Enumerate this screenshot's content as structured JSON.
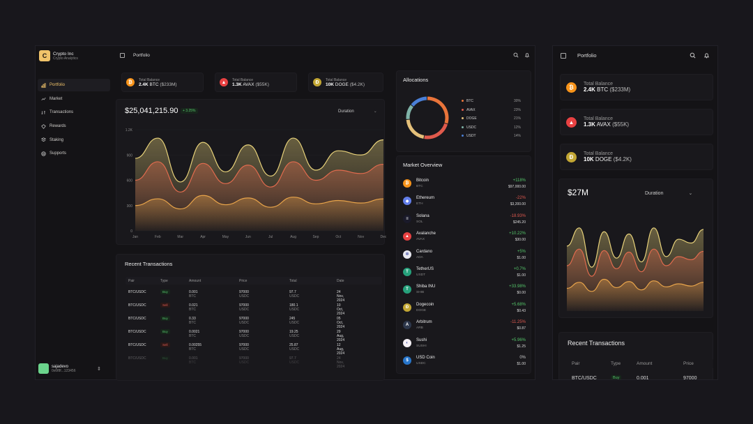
{
  "brand": {
    "name": "Crypto Inc",
    "subtitle": "Crypto Analytics",
    "logo_letter": "C"
  },
  "nav": [
    {
      "label": "Portfolio",
      "icon": "portfolio-icon"
    },
    {
      "label": "Market",
      "icon": "market-icon"
    },
    {
      "label": "Transactions",
      "icon": "transactions-icon"
    },
    {
      "label": "Rewards",
      "icon": "rewards-icon"
    },
    {
      "label": "Staking",
      "icon": "staking-icon"
    },
    {
      "label": "Supports",
      "icon": "supports-icon"
    }
  ],
  "user": {
    "name": "sajadevo",
    "address": "0x6f8f...123456"
  },
  "header": {
    "title": "Portfolio"
  },
  "balances": [
    {
      "label": "Total Balance",
      "amount": "2.4K",
      "sym": "BTC",
      "usd": "($233M)",
      "color": "#f7931a",
      "glyph": "₿"
    },
    {
      "label": "Total Balance",
      "amount": "1.3K",
      "sym": "AVAX",
      "usd": "($55K)",
      "color": "#e84142",
      "glyph": "▲"
    },
    {
      "label": "Total Balance",
      "amount": "10K",
      "sym": "DOGE",
      "usd": "($4.2K)",
      "color": "#c2a633",
      "glyph": "Ð"
    }
  ],
  "chart": {
    "value": "$25,041,215.90",
    "change": "+ 3.25%",
    "duration_label": "Duration",
    "y_ticks": [
      "1.2K",
      "900",
      "600",
      "300",
      "0"
    ],
    "months": [
      "Jan",
      "Feb",
      "Mar",
      "Apr",
      "May",
      "Jun",
      "Jul",
      "Aug",
      "Sep",
      "Oct",
      "Nov",
      "Dec"
    ]
  },
  "chart_data": {
    "type": "area",
    "ylim": [
      0,
      1200
    ],
    "x": [
      "Jan",
      "Feb",
      "Mar",
      "Apr",
      "May",
      "Jun",
      "Jul",
      "Aug",
      "Sep",
      "Oct",
      "Nov",
      "Dec"
    ],
    "series": [
      {
        "values": [
          860,
          1100,
          580,
          1050,
          700,
          1020,
          650,
          1100,
          720,
          950,
          900,
          1080
        ],
        "color": "#e8d27a"
      },
      {
        "values": [
          600,
          820,
          460,
          800,
          560,
          780,
          520,
          820,
          600,
          720,
          680,
          790
        ],
        "color": "#e16b4e"
      },
      {
        "values": [
          300,
          380,
          260,
          420,
          310,
          390,
          280,
          400,
          320,
          360,
          330,
          380
        ],
        "color": "#e8a44a"
      }
    ]
  },
  "transactions": {
    "title": "Recent Transactions",
    "headers": [
      "Pair",
      "Type",
      "Amount",
      "Price",
      "Total",
      "Date"
    ],
    "rows": [
      {
        "pair": "BTC/USDC",
        "type": "Buy",
        "amount": "0.001",
        "unit": "BTC",
        "price": "97000",
        "pu": "USDC",
        "total": "97.7",
        "tu": "USDC",
        "date": "24 Nov, 2024"
      },
      {
        "pair": "BTC/USDC",
        "type": "Sell",
        "amount": "0.021",
        "unit": "BTC",
        "price": "97000",
        "pu": "USDC",
        "total": "180.1",
        "tu": "USDC",
        "date": "10 Oct, 2024"
      },
      {
        "pair": "BTC/USDC",
        "type": "Buy",
        "amount": "0.33",
        "unit": "BTC",
        "price": "97000",
        "pu": "USDC",
        "total": "245",
        "tu": "USDC",
        "date": "05 Oct, 2024"
      },
      {
        "pair": "BTC/USDC",
        "type": "Buy",
        "amount": "0.0021",
        "unit": "BTC",
        "price": "97000",
        "pu": "USDC",
        "total": "19.25",
        "tu": "USDC",
        "date": "29 Aug, 2024"
      },
      {
        "pair": "BTC/USDC",
        "type": "Sell",
        "amount": "0.00255",
        "unit": "BTC",
        "price": "97000",
        "pu": "USDC",
        "total": "25.87",
        "tu": "USDC",
        "date": "12 Aug, 2024"
      },
      {
        "pair": "BTC/USDC",
        "type": "Buy",
        "amount": "0.001",
        "unit": "BTC",
        "price": "97000",
        "pu": "USDC",
        "total": "97.7",
        "tu": "USDC",
        "date": "24 Nov, 2024"
      }
    ]
  },
  "allocations": {
    "title": "Allocations",
    "items": [
      {
        "sym": "BTC",
        "pct": "30%",
        "value": 30,
        "color": "#e9743a"
      },
      {
        "sym": "AVAX",
        "pct": "23%",
        "value": 23,
        "color": "#e05a4c"
      },
      {
        "sym": "DOGE",
        "pct": "21%",
        "value": 21,
        "color": "#e4c07a"
      },
      {
        "sym": "USDC",
        "pct": "12%",
        "value": 12,
        "color": "#7fb3a8"
      },
      {
        "sym": "USDT",
        "pct": "14%",
        "value": 14,
        "color": "#4a7fd6"
      }
    ]
  },
  "market": {
    "title": "Market Overview",
    "items": [
      {
        "name": "Bitcoin",
        "sym": "BTC",
        "change": "+118%",
        "price": "$97,000.00",
        "dir": "up",
        "color": "#f7931a",
        "glyph": "₿"
      },
      {
        "name": "Ethereum",
        "sym": "ETH",
        "change": "-22%",
        "price": "$3,200.00",
        "dir": "dn",
        "color": "#627eea",
        "glyph": "◆"
      },
      {
        "name": "Solana",
        "sym": "SOL",
        "change": "-18.93%",
        "price": "$245.20",
        "dir": "dn",
        "color": "#1a1a2a",
        "glyph": "≡"
      },
      {
        "name": "Avalanche",
        "sym": "AVAX",
        "change": "+10.22%",
        "price": "$30.00",
        "dir": "up",
        "color": "#e84142",
        "glyph": "▲"
      },
      {
        "name": "Cardano",
        "sym": "ADA",
        "change": "+5%",
        "price": "$1.00",
        "dir": "up",
        "color": "#e8e8f0",
        "glyph": "✲"
      },
      {
        "name": "TetherUS",
        "sym": "USDT",
        "change": "+0.7%",
        "price": "$1.00",
        "dir": "up",
        "color": "#26a17b",
        "glyph": "T"
      },
      {
        "name": "Shiba INU",
        "sym": "SHIB",
        "change": "+33.98%",
        "price": "$0.00",
        "dir": "up",
        "color": "#26a17b",
        "glyph": "T"
      },
      {
        "name": "Dogecoin",
        "sym": "DOGE",
        "change": "+5.68%",
        "price": "$0.43",
        "dir": "up",
        "color": "#c2a633",
        "glyph": "Ð"
      },
      {
        "name": "Arbitrum",
        "sym": "ARB",
        "change": "-11.25%",
        "price": "$0.87",
        "dir": "dn",
        "color": "#2d374b",
        "glyph": "A"
      },
      {
        "name": "Sushi",
        "sym": "SUSHI",
        "change": "+5.96%",
        "price": "$1.25",
        "dir": "up",
        "color": "#f5f0f5",
        "glyph": "◐"
      },
      {
        "name": "USD Coin",
        "sym": "USDC",
        "change": "0%",
        "price": "$1.00",
        "dir": "fl",
        "color": "#2775ca",
        "glyph": "$"
      }
    ]
  },
  "mobile": {
    "title": "Portfolio",
    "value": "$27M",
    "duration_label": "Duration",
    "tx_title": "Recent Transactions",
    "tx_headers": [
      "Pair",
      "Type",
      "Amount",
      "Price"
    ],
    "tx_row": {
      "pair": "BTC/USDC",
      "type": "Buy",
      "amount": "0.001",
      "unit": "BTC",
      "price": "97000 U"
    }
  }
}
